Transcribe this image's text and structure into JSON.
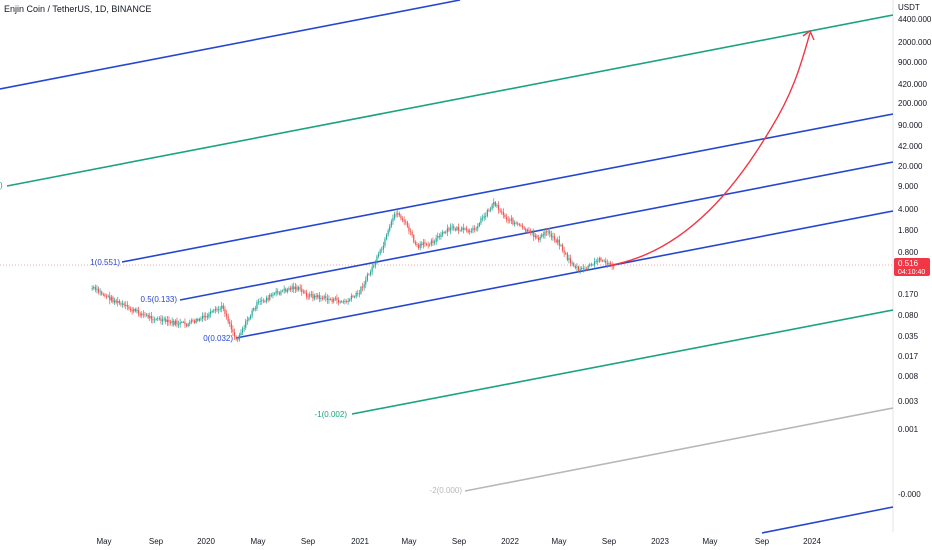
{
  "header": {
    "title": "Enjin Coin / TetherUS, 1D, BINANCE"
  },
  "colors": {
    "blue": "#2547d0",
    "green": "#1aa37f",
    "gray": "#b8b8b8",
    "red": "#f23645",
    "price_line": "#f7a3aa"
  },
  "chart_data": {
    "type": "candlestick",
    "title": "Enjin Coin / TetherUS, 1D, BINANCE",
    "ylabel": "USDT",
    "y_scale": "log",
    "y_ticks": [
      "4400.000",
      "2000.000",
      "900.000",
      "420.000",
      "200.000",
      "90.000",
      "42.000",
      "20.000",
      "9.000",
      "4.000",
      "1.800",
      "0.800",
      "0.170",
      "0.080",
      "0.035",
      "0.017",
      "0.008",
      "0.003",
      "0.001",
      "-0.000"
    ],
    "x_ticks": [
      "May",
      "Sep",
      "2020",
      "May",
      "Sep",
      "2021",
      "May",
      "Sep",
      "2022",
      "May",
      "Sep",
      "2023",
      "May",
      "Sep",
      "2024"
    ],
    "last_price": {
      "value": "0.516",
      "countdown": "04:10:40"
    },
    "fib_channel_levels": [
      {
        "label": "1(0.551)",
        "color": "blue"
      },
      {
        "label": "0.5(0.133)",
        "color": "blue"
      },
      {
        "label": "0(0.032)",
        "color": "blue"
      },
      {
        "label": "-1(0.002)",
        "color": "green"
      },
      {
        "label": "-2(0.000)",
        "color": "gray"
      },
      {
        "label": ")",
        "color": "green"
      }
    ],
    "projection": {
      "type": "curved-arrow",
      "color": "red",
      "target": "~4400"
    },
    "price_path": [
      [
        "2019-04-01",
        0.23
      ],
      [
        "2019-05-15",
        0.16
      ],
      [
        "2019-07-01",
        0.11
      ],
      [
        "2019-08-15",
        0.085
      ],
      [
        "2019-10-01",
        0.07
      ],
      [
        "2019-11-15",
        0.065
      ],
      [
        "2020-01-01",
        0.085
      ],
      [
        "2020-02-10",
        0.12
      ],
      [
        "2020-03-13",
        0.038
      ],
      [
        "2020-05-01",
        0.13
      ],
      [
        "2020-06-15",
        0.19
      ],
      [
        "2020-08-01",
        0.24
      ],
      [
        "2020-09-01",
        0.18
      ],
      [
        "2020-10-15",
        0.16
      ],
      [
        "2020-12-01",
        0.14
      ],
      [
        "2021-01-01",
        0.19
      ],
      [
        "2021-02-10",
        0.55
      ],
      [
        "2021-03-01",
        0.95
      ],
      [
        "2021-04-01",
        3.3
      ],
      [
        "2021-04-15",
        2.7
      ],
      [
        "2021-05-01",
        1.9
      ],
      [
        "2021-05-22",
        0.95
      ],
      [
        "2021-07-01",
        1.2
      ],
      [
        "2021-08-15",
        1.9
      ],
      [
        "2021-10-01",
        1.6
      ],
      [
        "2021-11-25",
        4.6
      ],
      [
        "2021-12-20",
        2.8
      ],
      [
        "2022-01-15",
        2.2
      ],
      [
        "2022-02-15",
        1.6
      ],
      [
        "2022-03-15",
        1.3
      ],
      [
        "2022-04-01",
        1.7
      ],
      [
        "2022-05-01",
        1.1
      ],
      [
        "2022-05-20",
        0.65
      ],
      [
        "2022-06-18",
        0.42
      ],
      [
        "2022-07-15",
        0.5
      ],
      [
        "2022-08-10",
        0.66
      ],
      [
        "2022-08-25",
        0.52
      ],
      [
        "2022-09-10",
        0.516
      ]
    ]
  }
}
